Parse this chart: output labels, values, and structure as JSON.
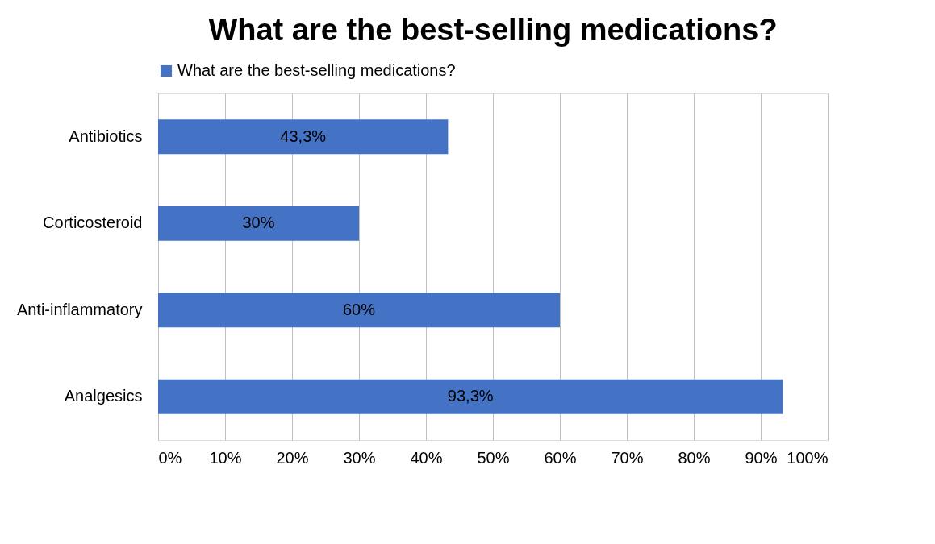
{
  "chart_data": {
    "type": "bar",
    "orientation": "horizontal",
    "title": "What are the best-selling medications?",
    "categories": [
      "Antibiotics",
      "Corticosteroid",
      "Anti-inflammatory",
      "Analgesics"
    ],
    "series": [
      {
        "name": "What are the best-selling medications?",
        "color": "#4472c4",
        "values": [
          43.3,
          30,
          60,
          93.3
        ],
        "value_labels": [
          "43,3%",
          "30%",
          "60%",
          "93,3%"
        ]
      }
    ],
    "xlim": [
      0,
      100
    ],
    "xticks": [
      {
        "value": 0,
        "label": "0%"
      },
      {
        "value": 10,
        "label": "10%"
      },
      {
        "value": 20,
        "label": "20%"
      },
      {
        "value": 30,
        "label": "30%"
      },
      {
        "value": 40,
        "label": "40%"
      },
      {
        "value": 50,
        "label": "50%"
      },
      {
        "value": 60,
        "label": "60%"
      },
      {
        "value": 70,
        "label": "70%"
      },
      {
        "value": 80,
        "label": "80%"
      },
      {
        "value": 90,
        "label": "90%"
      },
      {
        "value": 100,
        "label": "100%"
      }
    ],
    "grid": "x",
    "legend": "top"
  }
}
